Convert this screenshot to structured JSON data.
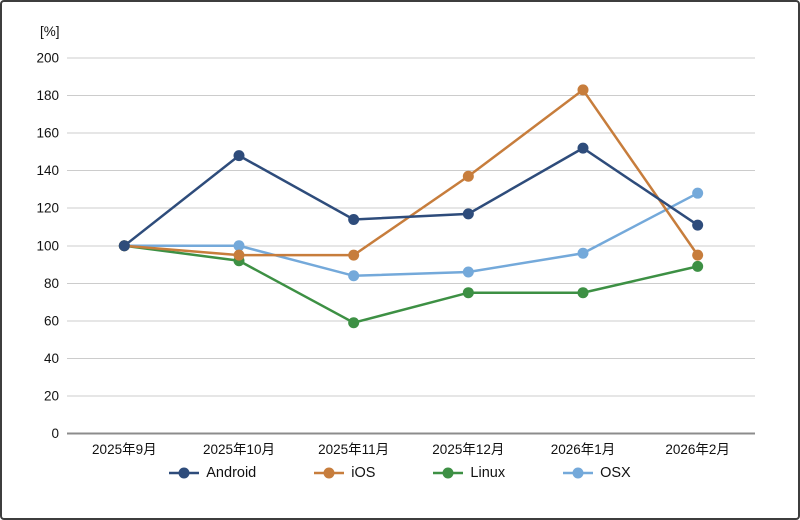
{
  "chart_data": {
    "type": "line",
    "title": "",
    "unit_label": "[%]",
    "categories": [
      "2025年9月",
      "2025年10月",
      "2025年11月",
      "2025年12月",
      "2026年1月",
      "2026年2月"
    ],
    "series": [
      {
        "name": "Android",
        "color": "#2e4c7b",
        "values": [
          100,
          148,
          114,
          117,
          152,
          111
        ]
      },
      {
        "name": "iOS",
        "color": "#c77d3c",
        "values": [
          100,
          95,
          95,
          137,
          183,
          95
        ]
      },
      {
        "name": "Linux",
        "color": "#3d9044",
        "values": [
          100,
          92,
          59,
          75,
          75,
          89
        ]
      },
      {
        "name": "OSX",
        "color": "#74a9da",
        "values": [
          100,
          100,
          84,
          86,
          96,
          128
        ]
      }
    ],
    "ylim": [
      0,
      200
    ],
    "yticks": [
      0,
      20,
      40,
      60,
      80,
      100,
      120,
      140,
      160,
      180,
      200
    ],
    "grid": true,
    "legend_position": "bottom"
  },
  "theme": {
    "background": "#ffffff",
    "border_color": "#3d3d3d",
    "gridline_color": "#cccccc",
    "axis_line_color": "#8c8c8c",
    "tick_text_color": "#111111"
  }
}
